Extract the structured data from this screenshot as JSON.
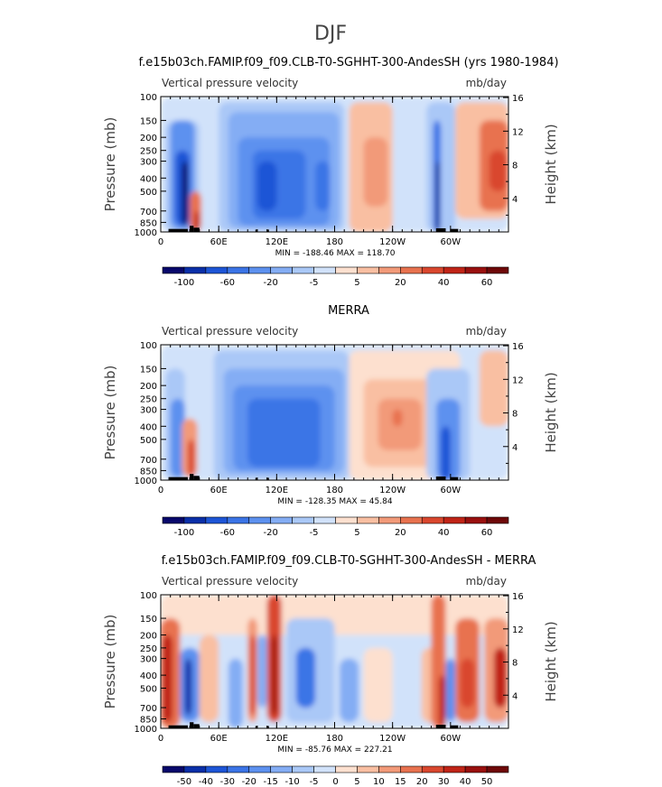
{
  "figure": {
    "suptitle": "DJF"
  },
  "chart_data": [
    {
      "type": "heatmap",
      "title": "f.e15b03ch.FAMIP.f09_f09.CLB-T0-SGHHT-300-AndesSH (yrs 1980-1984)",
      "left_label": "Vertical pressure velocity",
      "right_label": "mb/day",
      "ylabel": "Pressure (mb)",
      "ylabel_right": "Height (km)",
      "xticks": [
        "0",
        "60E",
        "120E",
        "180",
        "120W",
        "60W"
      ],
      "xtick_values": [
        0,
        60,
        120,
        180,
        240,
        300
      ],
      "xlim": [
        0,
        360
      ],
      "yticks": [
        "100",
        "150",
        "200",
        "250",
        "300",
        "400",
        "500",
        "700",
        "850",
        "1000"
      ],
      "ytick_values": [
        100,
        150,
        200,
        250,
        300,
        400,
        500,
        700,
        850,
        1000
      ],
      "ylim": [
        1000,
        100
      ],
      "yscale": "log",
      "yticks_right": [
        "16",
        "12",
        "8",
        "4"
      ],
      "ytick_right_values": [
        16,
        12,
        8,
        4
      ],
      "stats": "MIN = -188.46   MAX = 118.70",
      "colorbar_labels": [
        "-100",
        "-60",
        "-20",
        "-5",
        "5",
        "20",
        "40",
        "60"
      ],
      "colorbar_colors": [
        "#08086b",
        "#0a2fa8",
        "#1d55d6",
        "#3b74e6",
        "#5d91ef",
        "#84adf4",
        "#aac8f7",
        "#d1e2fa",
        "#fde0cf",
        "#f9bfa2",
        "#f29a79",
        "#e8724f",
        "#d9472e",
        "#c02417",
        "#99100e",
        "#6e0808"
      ],
      "range": [
        -188.46,
        118.7
      ]
    },
    {
      "type": "heatmap",
      "title": "MERRA",
      "left_label": "Vertical pressure velocity",
      "right_label": "mb/day",
      "ylabel": "Pressure (mb)",
      "ylabel_right": "Height (km)",
      "xticks": [
        "0",
        "60E",
        "120E",
        "180",
        "120W",
        "60W"
      ],
      "xtick_values": [
        0,
        60,
        120,
        180,
        240,
        300
      ],
      "xlim": [
        0,
        360
      ],
      "yticks": [
        "100",
        "150",
        "200",
        "250",
        "300",
        "400",
        "500",
        "700",
        "850",
        "1000"
      ],
      "ytick_values": [
        100,
        150,
        200,
        250,
        300,
        400,
        500,
        700,
        850,
        1000
      ],
      "ylim": [
        1000,
        100
      ],
      "yscale": "log",
      "yticks_right": [
        "16",
        "12",
        "8",
        "4"
      ],
      "ytick_right_values": [
        16,
        12,
        8,
        4
      ],
      "stats": "MIN = -128.35   MAX = 45.84",
      "colorbar_labels": [
        "-100",
        "-60",
        "-20",
        "-5",
        "5",
        "20",
        "40",
        "60"
      ],
      "colorbar_colors": [
        "#08086b",
        "#0a2fa8",
        "#1d55d6",
        "#3b74e6",
        "#5d91ef",
        "#84adf4",
        "#aac8f7",
        "#d1e2fa",
        "#fde0cf",
        "#f9bfa2",
        "#f29a79",
        "#e8724f",
        "#d9472e",
        "#c02417",
        "#99100e",
        "#6e0808"
      ],
      "range": [
        -128.35,
        45.84
      ]
    },
    {
      "type": "heatmap",
      "title": "f.e15b03ch.FAMIP.f09_f09.CLB-T0-SGHHT-300-AndesSH - MERRA",
      "left_label": "Vertical pressure velocity",
      "right_label": "mb/day",
      "ylabel": "Pressure (mb)",
      "ylabel_right": "Height (km)",
      "xticks": [
        "0",
        "60E",
        "120E",
        "180",
        "120W",
        "60W"
      ],
      "xtick_values": [
        0,
        60,
        120,
        180,
        240,
        300
      ],
      "xlim": [
        0,
        360
      ],
      "yticks": [
        "100",
        "150",
        "200",
        "250",
        "300",
        "400",
        "500",
        "700",
        "850",
        "1000"
      ],
      "ytick_values": [
        100,
        150,
        200,
        250,
        300,
        400,
        500,
        700,
        850,
        1000
      ],
      "ylim": [
        1000,
        100
      ],
      "yscale": "log",
      "yticks_right": [
        "16",
        "12",
        "8",
        "4"
      ],
      "ytick_right_values": [
        16,
        12,
        8,
        4
      ],
      "stats": "MIN = -85.76   MAX = 227.21",
      "colorbar_labels": [
        "-50",
        "-40",
        "-30",
        "-20",
        "-15",
        "-10",
        "-5",
        "0",
        "5",
        "10",
        "15",
        "20",
        "30",
        "40",
        "50"
      ],
      "colorbar_colors": [
        "#08086b",
        "#0a2fa8",
        "#1d55d6",
        "#3b74e6",
        "#5d91ef",
        "#84adf4",
        "#aac8f7",
        "#d1e2fa",
        "#fde0cf",
        "#f9bfa2",
        "#f29a79",
        "#e8724f",
        "#d9472e",
        "#c02417",
        "#99100e",
        "#6e0808"
      ],
      "range": [
        -85.76,
        227.21
      ]
    }
  ]
}
